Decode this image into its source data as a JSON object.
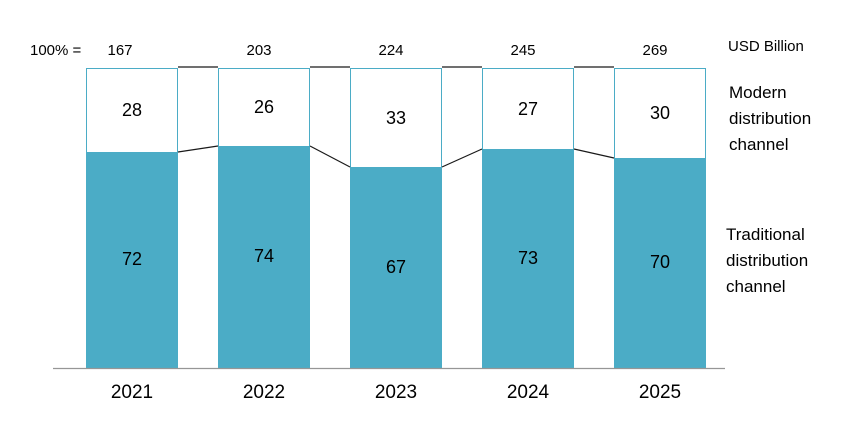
{
  "chart_data": {
    "type": "bar",
    "subtype": "stacked-100-percent",
    "title": "",
    "categories": [
      "2021",
      "2022",
      "2023",
      "2024",
      "2025"
    ],
    "totals_prefix": "100% =",
    "totals": [
      167,
      203,
      224,
      245,
      269
    ],
    "totals_unit": "USD Billion",
    "series": [
      {
        "name": "Modern distribution channel",
        "values": [
          28,
          26,
          33,
          27,
          30
        ],
        "color": "#FFFFFF"
      },
      {
        "name": "Traditional distribution channel",
        "values": [
          72,
          74,
          67,
          73,
          70
        ],
        "color": "#4BACC6"
      }
    ],
    "ylim": [
      0,
      100
    ],
    "grid": false,
    "legend_position": "right",
    "connectors": true
  },
  "colors": {
    "accent_teal": "#4BACC6",
    "axis_gray": "#969696",
    "connector_black": "#1a1a1a",
    "text_black": "#000000"
  }
}
